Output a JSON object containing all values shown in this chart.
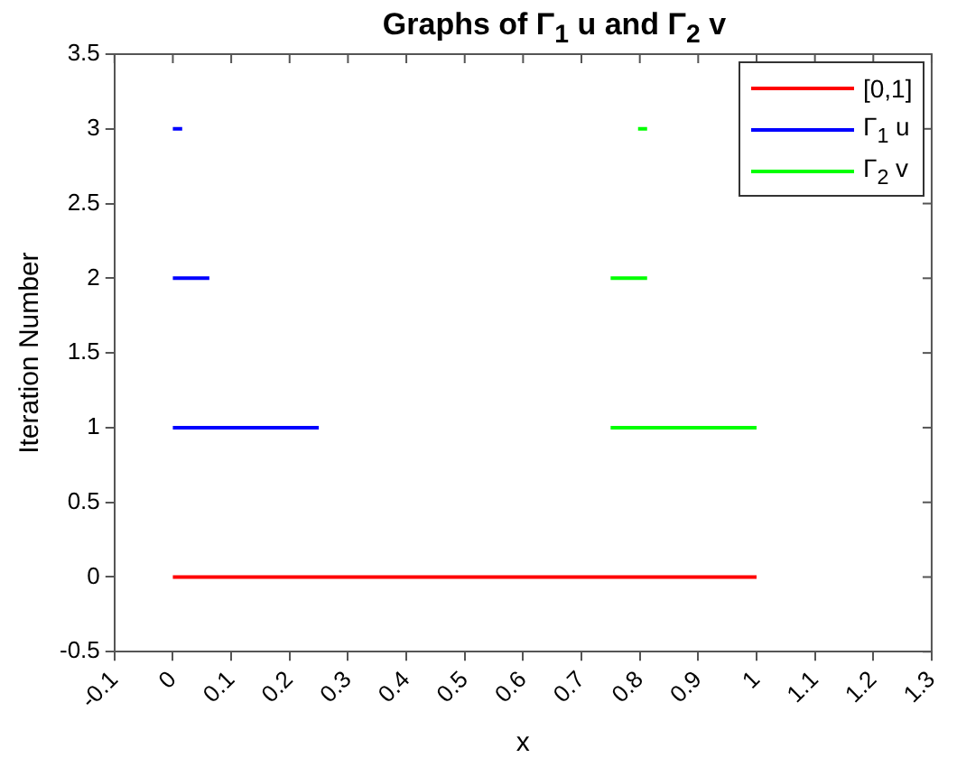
{
  "chart_data": {
    "type": "line",
    "title": "Graphs of Γ$_{1}$ u and Γ$_{2}$ v",
    "xlabel": "x",
    "ylabel": "Iteration Number",
    "xlim": [
      -0.1,
      1.3
    ],
    "xticks": [
      -0.1,
      0,
      0.1,
      0.2,
      0.3,
      0.4,
      0.5,
      0.6,
      0.7,
      0.8,
      0.9,
      1,
      1.1,
      1.2,
      1.3
    ],
    "ylim": [
      -0.5,
      3.5
    ],
    "yticks": [
      -0.5,
      0,
      0.5,
      1,
      1.5,
      2,
      2.5,
      3,
      3.5
    ],
    "series": [
      {
        "name": "[0,1]",
        "color": "#ff0000",
        "x": [
          0,
          1
        ],
        "values": [
          0,
          0
        ]
      },
      {
        "name": "Γ$_{1}$ u",
        "color": "#0000ff",
        "x": [
          0,
          0.25,
          null,
          0,
          0.0625,
          null,
          0,
          0.016
        ],
        "values": [
          1,
          1,
          null,
          2,
          2,
          null,
          3,
          3
        ]
      },
      {
        "name": "Γ$_{2}$ v",
        "color": "#00ff00",
        "x": [
          0.75,
          1,
          null,
          0.75,
          0.8125,
          null,
          0.797,
          0.8125
        ],
        "values": [
          1,
          1,
          null,
          2,
          2,
          null,
          3,
          3
        ]
      }
    ],
    "legend": "top right",
    "grid": false,
    "marker": "none",
    "line_style": "solid"
  }
}
